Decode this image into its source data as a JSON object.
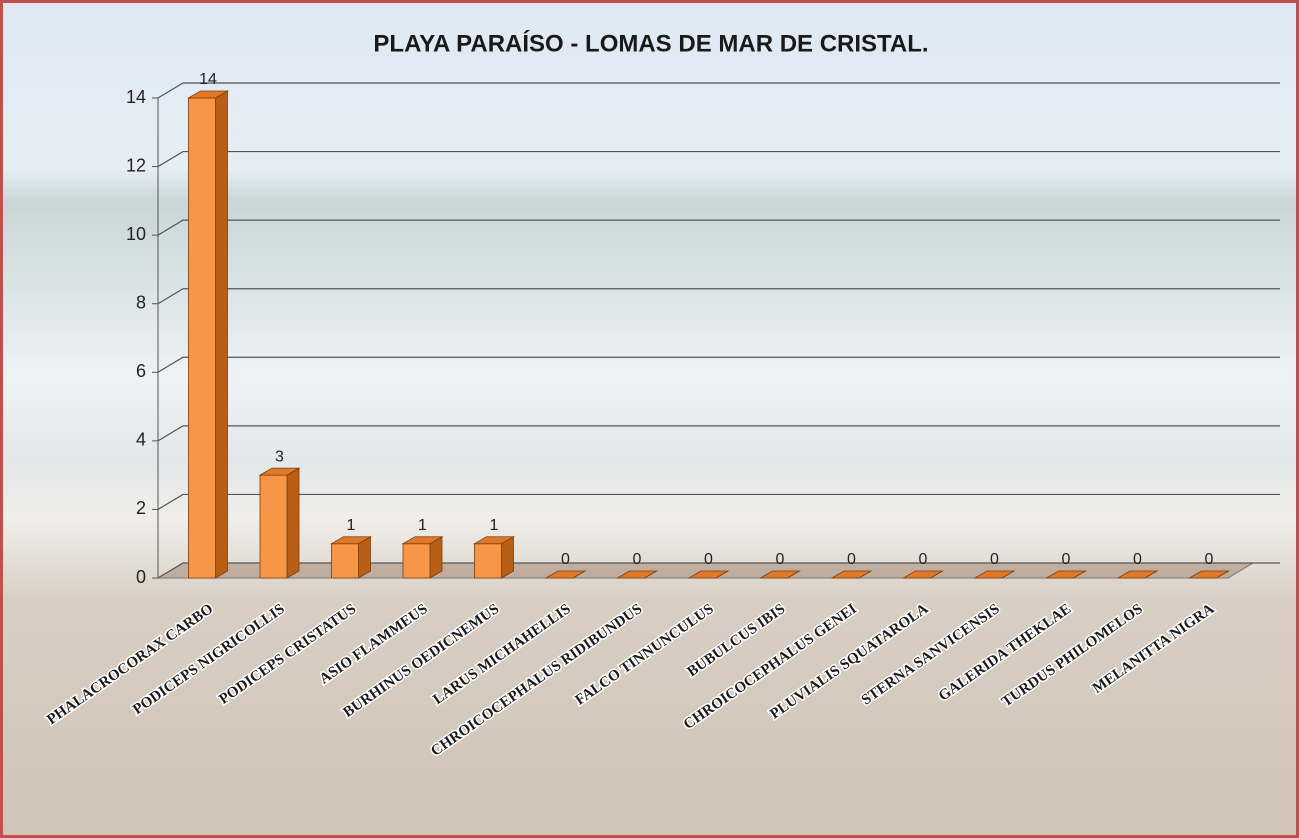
{
  "chart_data": {
    "type": "bar3d",
    "title": "PLAYA PARAÍSO - LOMAS DE MAR DE CRISTAL.",
    "categories": [
      "PHALACROCORAX CARBO",
      "PODICEPS NIGRICOLLIS",
      "PODICEPS CRISTATUS",
      "ASIO FLAMMEUS",
      "BURHINUS OEDICNEMUS",
      "LARUS MICHAHELLIS",
      "CHROICOCEPHALUS RIDIBUNDUS",
      "FALCO TINNUNCULUS",
      "BUBULCUS IBIS",
      "CHROICOCEPHALUS GENEI",
      "PLUVIALIS SQUATAROLA",
      "STERNA SANVICENSIS",
      "GALERIDA THEKLAE",
      "TURDUS PHILOMELOS",
      "MELANITTA NIGRA"
    ],
    "values": [
      14,
      3,
      1,
      1,
      1,
      0,
      0,
      0,
      0,
      0,
      0,
      0,
      0,
      0,
      0
    ],
    "color": "#f79646",
    "ylim": [
      0,
      14
    ],
    "yticks": [
      0,
      2,
      4,
      6,
      8,
      10,
      12,
      14
    ],
    "grid": true
  }
}
